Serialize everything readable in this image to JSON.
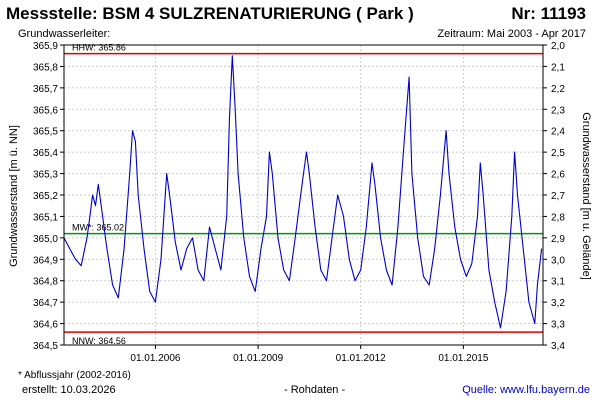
{
  "header": {
    "title": "Messstelle: BSM 4 SULZRENATURIERUNG ( Park )",
    "number": "Nr: 11193",
    "aquifer_label": "Grundwasserleiter:",
    "period": "Zeitraum: Mai 2003 - Apr 2017"
  },
  "footer": {
    "footnote": "* Abflussjahr (2002-2016)",
    "created": "erstellt:  10.03.2026",
    "raw_data": "- Rohdaten -",
    "source": "Quelle: www.lfu.bayern.de"
  },
  "colors": {
    "series": "#0000cc",
    "extreme_lines": "#dd0000",
    "mean_line": "#009900",
    "grid": "#cccccc"
  },
  "chart_data": {
    "type": "line",
    "title": "",
    "ylabel_left": "Grundwasserstand [m ü. NN]",
    "ylabel_right": "Grundwasserstand [m u. Gelände]",
    "ylim": [
      364.5,
      365.9
    ],
    "yticks_left": [
      "364,5",
      "364,6",
      "364,7",
      "364,8",
      "364,9",
      "365,0",
      "365,1",
      "365,2",
      "365,3",
      "365,4",
      "365,5",
      "365,6",
      "365,7",
      "365,8",
      "365,9"
    ],
    "yticks_right": [
      "3,4",
      "3,3",
      "3,2",
      "3,1",
      "3,0",
      "2,9",
      "2,8",
      "2,7",
      "2,6",
      "2,5",
      "2,4",
      "2,3",
      "2,2",
      "2,1",
      "2,0"
    ],
    "xlim": [
      "2003-05-01",
      "2017-04-30"
    ],
    "xticks": [
      {
        "date": "2006-01-01",
        "label": "01.01.2006"
      },
      {
        "date": "2009-01-01",
        "label": "01.01.2009"
      },
      {
        "date": "2012-01-01",
        "label": "01.01.2012"
      },
      {
        "date": "2015-01-01",
        "label": "01.01.2015"
      }
    ],
    "grid": true,
    "reference_lines": [
      {
        "label": "HHW: 365.86",
        "value": 365.86,
        "color": "#dd0000"
      },
      {
        "label": "MW*: 365.02",
        "value": 365.02,
        "color": "#009900"
      },
      {
        "label": "NNW: 364.56",
        "value": 364.56,
        "color": "#dd0000"
      }
    ],
    "series": [
      {
        "points": [
          [
            "2003-05-01",
            365.0
          ],
          [
            "2003-07-01",
            364.95
          ],
          [
            "2003-09-01",
            364.9
          ],
          [
            "2003-11-01",
            364.87
          ],
          [
            "2004-01-01",
            365.0
          ],
          [
            "2004-02-01",
            365.1
          ],
          [
            "2004-03-01",
            365.2
          ],
          [
            "2004-04-01",
            365.15
          ],
          [
            "2004-05-01",
            365.25
          ],
          [
            "2004-06-01",
            365.15
          ],
          [
            "2004-08-01",
            364.95
          ],
          [
            "2004-10-01",
            364.78
          ],
          [
            "2004-12-01",
            364.72
          ],
          [
            "2005-02-01",
            364.95
          ],
          [
            "2005-04-01",
            365.3
          ],
          [
            "2005-05-01",
            365.5
          ],
          [
            "2005-06-01",
            365.45
          ],
          [
            "2005-07-01",
            365.2
          ],
          [
            "2005-09-01",
            364.95
          ],
          [
            "2005-11-01",
            364.75
          ],
          [
            "2006-01-01",
            364.7
          ],
          [
            "2006-03-01",
            364.9
          ],
          [
            "2006-05-01",
            365.3
          ],
          [
            "2006-06-01",
            365.2
          ],
          [
            "2006-08-01",
            364.98
          ],
          [
            "2006-10-01",
            364.85
          ],
          [
            "2006-12-01",
            364.95
          ],
          [
            "2007-02-01",
            365.0
          ],
          [
            "2007-04-01",
            364.85
          ],
          [
            "2007-06-01",
            364.8
          ],
          [
            "2007-08-01",
            365.05
          ],
          [
            "2007-10-01",
            364.95
          ],
          [
            "2007-12-01",
            364.85
          ],
          [
            "2008-02-01",
            365.1
          ],
          [
            "2008-03-01",
            365.55
          ],
          [
            "2008-04-01",
            365.85
          ],
          [
            "2008-05-01",
            365.6
          ],
          [
            "2008-06-01",
            365.3
          ],
          [
            "2008-08-01",
            365.0
          ],
          [
            "2008-10-01",
            364.82
          ],
          [
            "2008-12-01",
            364.75
          ],
          [
            "2009-02-01",
            364.95
          ],
          [
            "2009-04-01",
            365.1
          ],
          [
            "2009-05-01",
            365.4
          ],
          [
            "2009-06-01",
            365.3
          ],
          [
            "2009-08-01",
            365.0
          ],
          [
            "2009-10-01",
            364.85
          ],
          [
            "2009-12-01",
            364.8
          ],
          [
            "2010-02-01",
            365.0
          ],
          [
            "2010-04-01",
            365.2
          ],
          [
            "2010-05-01",
            365.3
          ],
          [
            "2010-06-01",
            365.4
          ],
          [
            "2010-07-01",
            365.3
          ],
          [
            "2010-09-01",
            365.05
          ],
          [
            "2010-11-01",
            364.85
          ],
          [
            "2011-01-01",
            364.8
          ],
          [
            "2011-03-01",
            365.0
          ],
          [
            "2011-05-01",
            365.2
          ],
          [
            "2011-07-01",
            365.1
          ],
          [
            "2011-09-01",
            364.9
          ],
          [
            "2011-11-01",
            364.8
          ],
          [
            "2012-01-01",
            364.85
          ],
          [
            "2012-03-01",
            365.05
          ],
          [
            "2012-05-01",
            365.35
          ],
          [
            "2012-06-01",
            365.25
          ],
          [
            "2012-08-01",
            365.0
          ],
          [
            "2012-10-01",
            364.85
          ],
          [
            "2012-12-01",
            364.78
          ],
          [
            "2013-02-01",
            365.05
          ],
          [
            "2013-04-01",
            365.4
          ],
          [
            "2013-06-01",
            365.75
          ],
          [
            "2013-07-01",
            365.3
          ],
          [
            "2013-09-01",
            365.0
          ],
          [
            "2013-11-01",
            364.82
          ],
          [
            "2014-01-01",
            364.78
          ],
          [
            "2014-03-01",
            364.95
          ],
          [
            "2014-05-01",
            365.2
          ],
          [
            "2014-07-01",
            365.5
          ],
          [
            "2014-08-01",
            365.3
          ],
          [
            "2014-10-01",
            365.05
          ],
          [
            "2014-12-01",
            364.9
          ],
          [
            "2015-02-01",
            364.82
          ],
          [
            "2015-04-01",
            364.88
          ],
          [
            "2015-06-01",
            365.1
          ],
          [
            "2015-07-01",
            365.35
          ],
          [
            "2015-08-01",
            365.2
          ],
          [
            "2015-10-01",
            364.85
          ],
          [
            "2015-12-01",
            364.7
          ],
          [
            "2016-02-01",
            364.58
          ],
          [
            "2016-04-01",
            364.75
          ],
          [
            "2016-06-01",
            365.1
          ],
          [
            "2016-07-01",
            365.4
          ],
          [
            "2016-08-01",
            365.2
          ],
          [
            "2016-10-01",
            364.95
          ],
          [
            "2016-12-01",
            364.7
          ],
          [
            "2017-02-01",
            364.6
          ],
          [
            "2017-03-01",
            364.78
          ],
          [
            "2017-04-15",
            364.95
          ]
        ]
      }
    ]
  }
}
